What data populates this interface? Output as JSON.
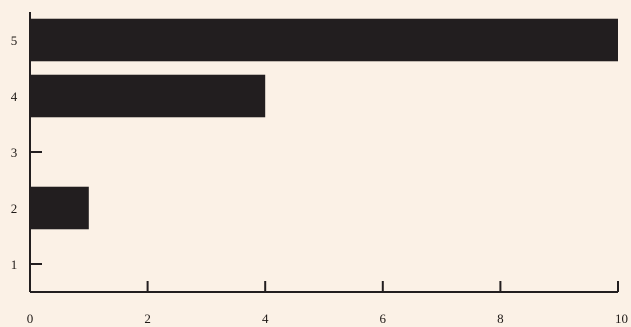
{
  "chart_data": {
    "type": "bar",
    "orientation": "horizontal",
    "title": "",
    "xlabel": "",
    "ylabel": "",
    "categories": [
      "1",
      "2",
      "3",
      "4",
      "5"
    ],
    "values": [
      0,
      1,
      0,
      4,
      10
    ],
    "xlim": [
      0,
      10
    ],
    "x_ticks": [
      "0",
      "2",
      "4",
      "6",
      "8",
      "10"
    ],
    "grid": false,
    "legend": "none",
    "colors": {
      "bar": "#221e1f",
      "axis": "#221e1f",
      "background": "#fbf1e6"
    }
  }
}
